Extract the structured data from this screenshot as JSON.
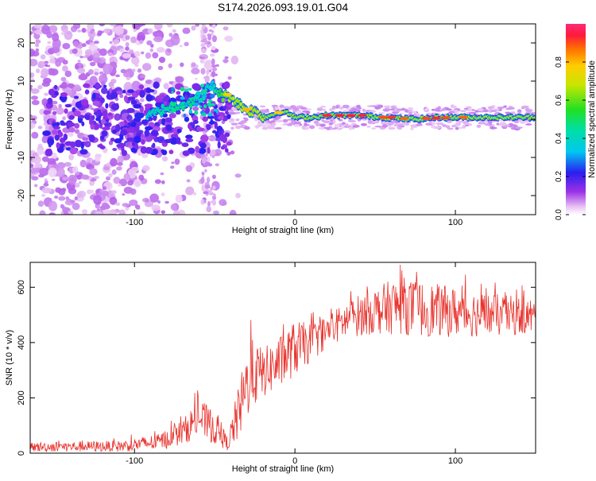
{
  "title": "S174.2026.093.19.01.G04",
  "chart_data": [
    {
      "type": "heatmap",
      "title": "S174.2026.093.19.01.G04",
      "xlabel": "Height of straight line (km)",
      "ylabel": "Frequency (Hz)",
      "xlim": [
        -165,
        150
      ],
      "ylim": [
        -25,
        25
      ],
      "x_ticks": [
        -100,
        0,
        100
      ],
      "y_ticks": [
        -20,
        -10,
        0,
        10,
        20
      ],
      "colorbar": {
        "label": "Normalized spectral amplitude",
        "range": [
          0,
          1
        ],
        "ticks": [
          0.0,
          0.2,
          0.4,
          0.6,
          0.8
        ],
        "tick_labels": [
          "0.0",
          "0.2",
          "0.4",
          "0.6",
          "0.8"
        ]
      },
      "ridge": {
        "description": "high-amplitude frequency track",
        "points": [
          {
            "x": -90,
            "y": 1,
            "a": 0.35
          },
          {
            "x": -80,
            "y": 3,
            "a": 0.4
          },
          {
            "x": -70,
            "y": 4,
            "a": 0.45
          },
          {
            "x": -60,
            "y": 5,
            "a": 0.4
          },
          {
            "x": -52,
            "y": 9,
            "a": 0.3
          },
          {
            "x": -45,
            "y": 6,
            "a": 0.55
          },
          {
            "x": -40,
            "y": 6,
            "a": 0.65
          },
          {
            "x": -35,
            "y": 4,
            "a": 0.6
          },
          {
            "x": -30,
            "y": 2.5,
            "a": 0.7
          },
          {
            "x": -25,
            "y": 2,
            "a": 0.65
          },
          {
            "x": -18,
            "y": 0.5,
            "a": 0.75
          },
          {
            "x": -12,
            "y": 1.5,
            "a": 0.7
          },
          {
            "x": -8,
            "y": 2,
            "a": 0.7
          },
          {
            "x": -4,
            "y": 1.5,
            "a": 0.75
          },
          {
            "x": 0,
            "y": 0.5,
            "a": 0.8
          },
          {
            "x": 10,
            "y": 0.5,
            "a": 0.85
          },
          {
            "x": 20,
            "y": 1,
            "a": 0.9
          },
          {
            "x": 40,
            "y": 1,
            "a": 0.95
          },
          {
            "x": 55,
            "y": 0.5,
            "a": 0.85
          },
          {
            "x": 75,
            "y": 0,
            "a": 0.8
          },
          {
            "x": 90,
            "y": 0.5,
            "a": 0.85
          },
          {
            "x": 110,
            "y": 0.5,
            "a": 0.8
          },
          {
            "x": 130,
            "y": 0.5,
            "a": 0.75
          },
          {
            "x": 150,
            "y": 0.5,
            "a": 0.7
          }
        ]
      }
    },
    {
      "type": "line",
      "xlabel": "Height of straight line (km)",
      "ylabel": "SNR (10 * v/v)",
      "xlim": [
        -165,
        150
      ],
      "ylim": [
        0,
        690
      ],
      "x_ticks": [
        -100,
        0,
        100
      ],
      "y_ticks": [
        0,
        200,
        400,
        600
      ],
      "series": [
        {
          "name": "SNR",
          "color": "#e8322c",
          "envelope": [
            {
              "x": -165,
              "lo": 5,
              "hi": 40
            },
            {
              "x": -110,
              "lo": 5,
              "hi": 45
            },
            {
              "x": -85,
              "lo": 10,
              "hi": 70
            },
            {
              "x": -70,
              "lo": 30,
              "hi": 120
            },
            {
              "x": -60,
              "lo": 60,
              "hi": 200
            },
            {
              "x": -50,
              "lo": 30,
              "hi": 150
            },
            {
              "x": -42,
              "lo": 10,
              "hi": 60
            },
            {
              "x": -35,
              "lo": 40,
              "hi": 250
            },
            {
              "x": -28,
              "lo": 150,
              "hi": 420
            },
            {
              "x": -20,
              "lo": 200,
              "hi": 380
            },
            {
              "x": -10,
              "lo": 230,
              "hi": 420
            },
            {
              "x": 0,
              "lo": 280,
              "hi": 480
            },
            {
              "x": 10,
              "lo": 330,
              "hi": 470
            },
            {
              "x": 20,
              "lo": 380,
              "hi": 500
            },
            {
              "x": 35,
              "lo": 420,
              "hi": 560
            },
            {
              "x": 50,
              "lo": 430,
              "hi": 600
            },
            {
              "x": 65,
              "lo": 430,
              "hi": 640
            },
            {
              "x": 80,
              "lo": 420,
              "hi": 620
            },
            {
              "x": 100,
              "lo": 420,
              "hi": 600
            },
            {
              "x": 120,
              "lo": 420,
              "hi": 580
            },
            {
              "x": 150,
              "lo": 430,
              "hi": 560
            }
          ]
        }
      ]
    }
  ]
}
